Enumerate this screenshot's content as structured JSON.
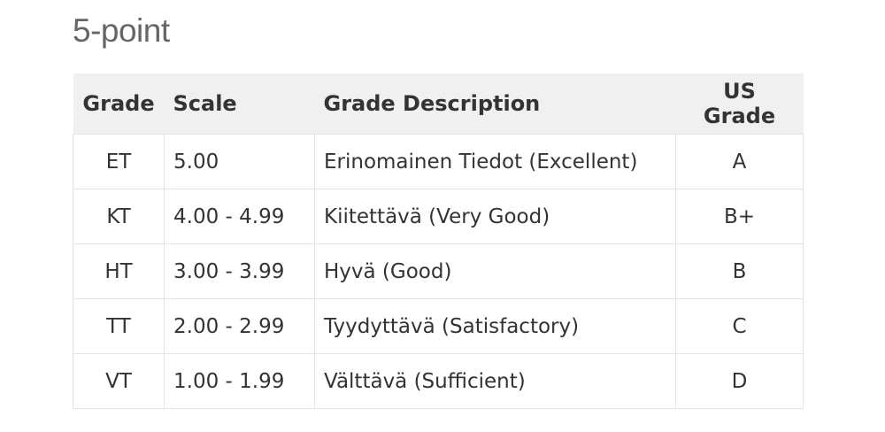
{
  "heading": "5-point",
  "table": {
    "headers": [
      "Grade",
      "Scale",
      "Grade Description",
      "US Grade"
    ],
    "rows": [
      [
        "ET",
        "5.00",
        "Erinomainen Tiedot (Excellent)",
        "A"
      ],
      [
        "KT",
        "4.00 - 4.99",
        "Kiitettävä (Very Good)",
        "B+"
      ],
      [
        "HT",
        "3.00 - 3.99",
        "Hyvä (Good)",
        "B"
      ],
      [
        "TT",
        "2.00 - 2.99",
        "Tyydyttävä (Satisfactory)",
        "C"
      ],
      [
        "VT",
        "1.00 - 1.99",
        "Välttävä (Sufficient)",
        "D"
      ]
    ]
  }
}
